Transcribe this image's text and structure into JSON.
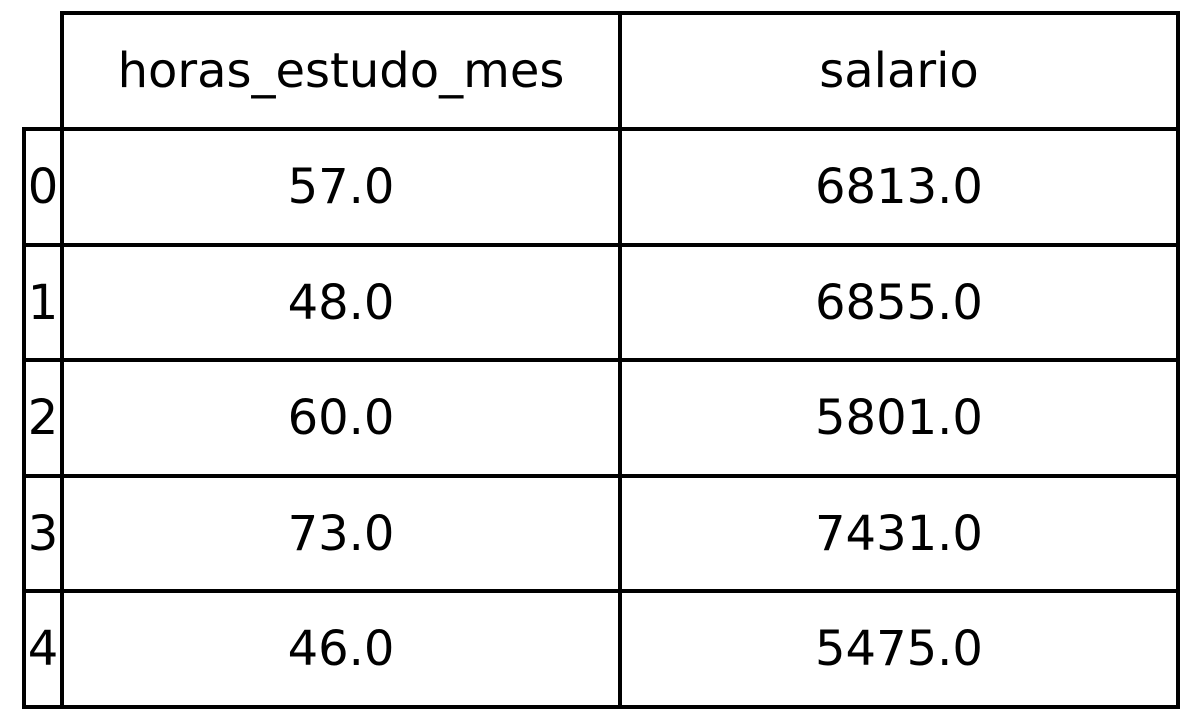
{
  "chart_data": {
    "type": "table",
    "columns": [
      "horas_estudo_mes",
      "salario"
    ],
    "index": [
      "0",
      "1",
      "2",
      "3",
      "4"
    ],
    "rows": [
      [
        "57.0",
        "6813.0"
      ],
      [
        "48.0",
        "6855.0"
      ],
      [
        "60.0",
        "5801.0"
      ],
      [
        "73.0",
        "7431.0"
      ],
      [
        "46.0",
        "5475.0"
      ]
    ]
  }
}
